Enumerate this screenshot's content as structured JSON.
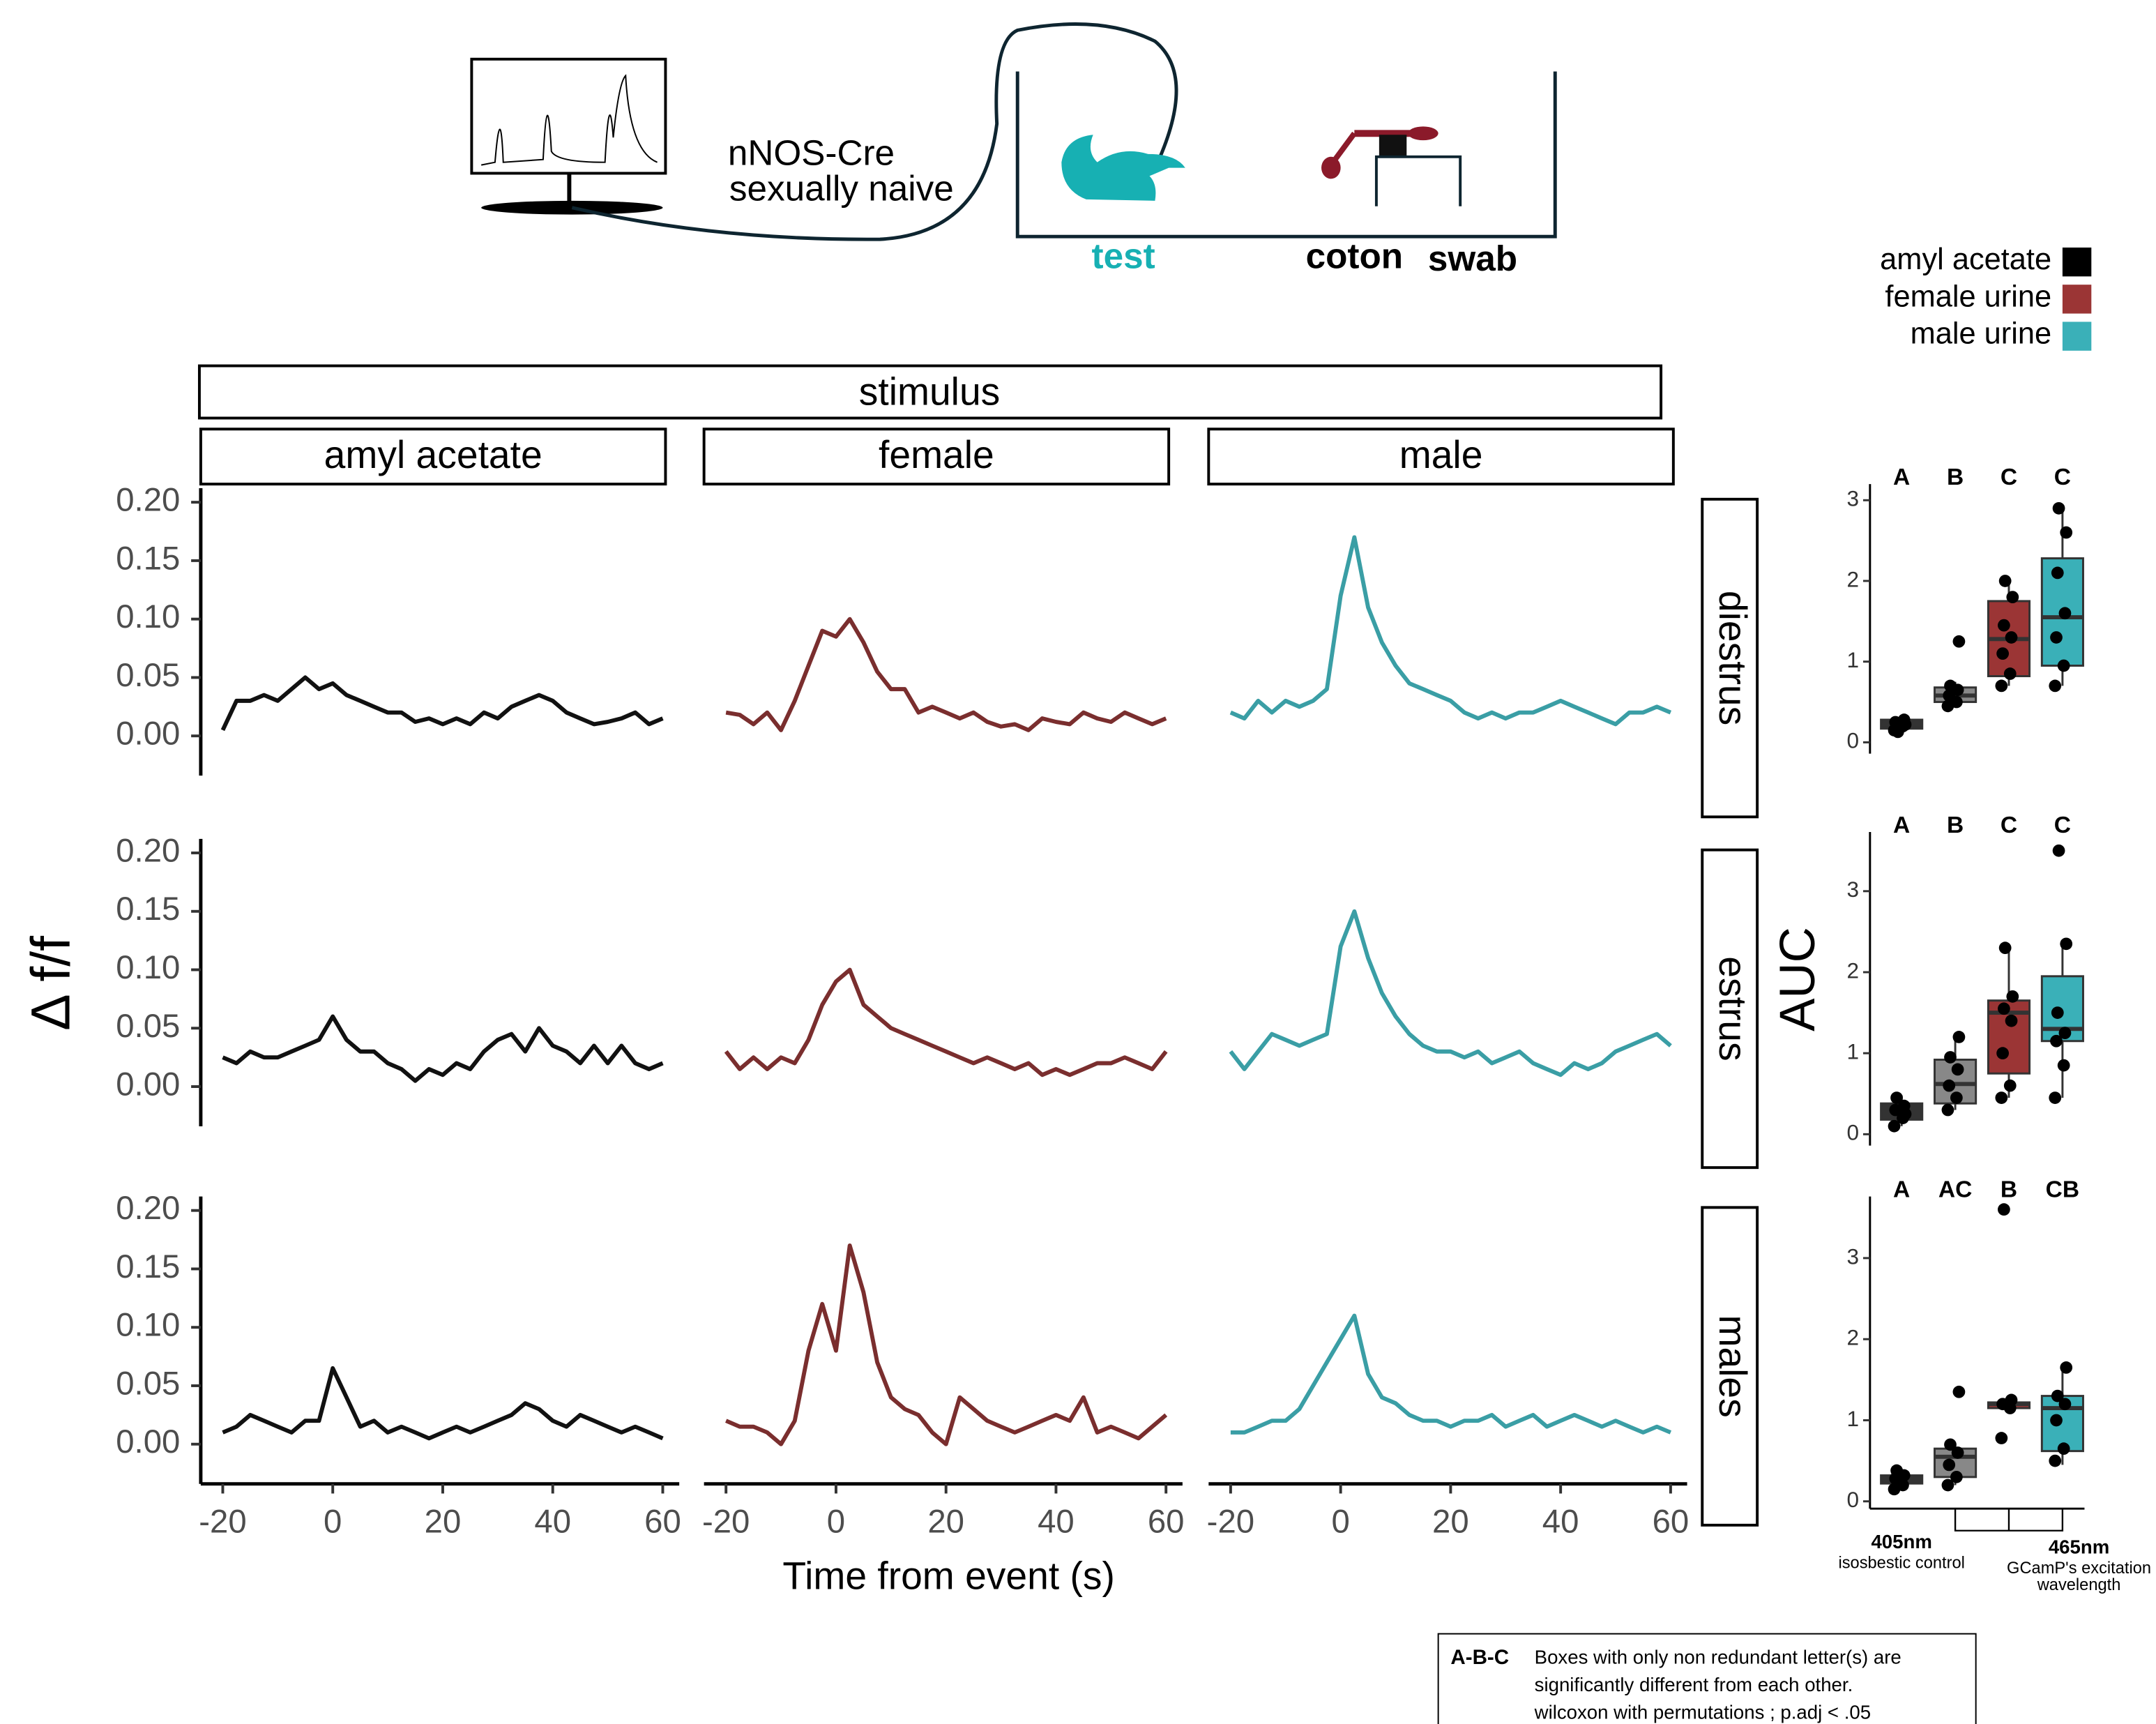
{
  "header": {
    "strain": "nNOS-Cre",
    "condition": "sexually naive",
    "test": "test",
    "stimulus_1": "coton",
    "stimulus_2": "swab"
  },
  "footnote": {
    "key": "A-B-C",
    "lines": [
      "Boxes with only non redundant letter(s) are",
      "significantly different from each other.",
      "wilcoxon with permutations ; p.adj < .05"
    ]
  },
  "chart_data": [
    {
      "type": "line",
      "facet_title": "stimulus",
      "ylabel": "Δ f/f",
      "xlabel": "Time from event (s)",
      "columns": [
        "amyl acetate",
        "female",
        "male"
      ],
      "colors": [
        "#111111",
        "#7a2e2e",
        "#3a9ea5"
      ],
      "xlim": [
        -24,
        63
      ],
      "xticks": [
        -20,
        0,
        20,
        40,
        60
      ],
      "ylim": [
        -0.034,
        0.212
      ],
      "yticks": [
        {
          "value": 0,
          "label": "0.00"
        },
        0.05,
        {
          "value": 0.1,
          "label": "0.10"
        },
        0.15,
        {
          "value": 0.2,
          "label": "0.20"
        }
      ],
      "x": [
        -20,
        -17.5,
        -15,
        -12.5,
        -10,
        -7.5,
        -5,
        -2.5,
        0,
        2.5,
        5,
        7.5,
        10,
        12.5,
        15,
        17.5,
        20,
        22.5,
        25,
        27.5,
        30,
        32.5,
        35,
        37.5,
        40,
        42.5,
        45,
        47.5,
        50,
        52.5,
        55,
        57.5,
        60
      ],
      "rows": [
        {
          "name": "diestrus",
          "values": [
            [
              0.005,
              0.03,
              0.03,
              0.035,
              0.03,
              0.04,
              0.05,
              0.04,
              0.045,
              0.035,
              0.03,
              0.025,
              0.02,
              0.02,
              0.012,
              0.015,
              0.01,
              0.015,
              0.01,
              0.02,
              0.015,
              0.025,
              0.03,
              0.035,
              0.03,
              0.02,
              0.015,
              0.01,
              0.012,
              0.015,
              0.02,
              0.01,
              0.015
            ],
            [
              0.02,
              0.018,
              0.01,
              0.02,
              0.005,
              0.03,
              0.06,
              0.09,
              0.085,
              0.1,
              0.08,
              0.055,
              0.04,
              0.04,
              0.02,
              0.025,
              0.02,
              0.015,
              0.02,
              0.012,
              0.008,
              0.01,
              0.005,
              0.015,
              0.012,
              0.01,
              0.02,
              0.015,
              0.012,
              0.02,
              0.015,
              0.01,
              0.015
            ],
            [
              0.02,
              0.015,
              0.03,
              0.02,
              0.03,
              0.025,
              0.03,
              0.04,
              0.12,
              0.17,
              0.11,
              0.08,
              0.06,
              0.045,
              0.04,
              0.035,
              0.03,
              0.02,
              0.015,
              0.02,
              0.015,
              0.02,
              0.02,
              0.025,
              0.03,
              0.025,
              0.02,
              0.015,
              0.01,
              0.02,
              0.02,
              0.025,
              0.02
            ]
          ]
        },
        {
          "name": "estrus",
          "values": [
            [
              0.025,
              0.02,
              0.03,
              0.025,
              0.025,
              0.03,
              0.035,
              0.04,
              0.06,
              0.04,
              0.03,
              0.03,
              0.02,
              0.015,
              0.005,
              0.015,
              0.01,
              0.02,
              0.015,
              0.03,
              0.04,
              0.045,
              0.03,
              0.05,
              0.035,
              0.03,
              0.02,
              0.035,
              0.02,
              0.035,
              0.02,
              0.015,
              0.02
            ],
            [
              0.03,
              0.015,
              0.025,
              0.015,
              0.025,
              0.02,
              0.04,
              0.07,
              0.09,
              0.1,
              0.07,
              0.06,
              0.05,
              0.045,
              0.04,
              0.035,
              0.03,
              0.025,
              0.02,
              0.025,
              0.02,
              0.015,
              0.02,
              0.01,
              0.015,
              0.01,
              0.015,
              0.02,
              0.02,
              0.025,
              0.02,
              0.015,
              0.03
            ],
            [
              0.03,
              0.015,
              0.03,
              0.045,
              0.04,
              0.035,
              0.04,
              0.045,
              0.12,
              0.15,
              0.11,
              0.08,
              0.06,
              0.045,
              0.035,
              0.03,
              0.03,
              0.025,
              0.03,
              0.02,
              0.025,
              0.03,
              0.02,
              0.015,
              0.01,
              0.02,
              0.015,
              0.02,
              0.03,
              0.035,
              0.04,
              0.045,
              0.035
            ]
          ]
        },
        {
          "name": "males",
          "values": [
            [
              0.01,
              0.015,
              0.025,
              0.02,
              0.015,
              0.01,
              0.02,
              0.02,
              0.065,
              0.04,
              0.015,
              0.02,
              0.01,
              0.015,
              0.01,
              0.005,
              0.01,
              0.015,
              0.01,
              0.015,
              0.02,
              0.025,
              0.035,
              0.03,
              0.02,
              0.015,
              0.025,
              0.02,
              0.015,
              0.01,
              0.015,
              0.01,
              0.005
            ],
            [
              0.02,
              0.015,
              0.015,
              0.01,
              0,
              0.02,
              0.08,
              0.12,
              0.08,
              0.17,
              0.13,
              0.07,
              0.04,
              0.03,
              0.025,
              0.01,
              0,
              0.04,
              0.03,
              0.02,
              0.015,
              0.01,
              0.015,
              0.02,
              0.025,
              0.02,
              0.04,
              0.01,
              0.015,
              0.01,
              0.005,
              0.015,
              0.025
            ],
            [
              0.01,
              0.01,
              0.015,
              0.02,
              0.02,
              0.03,
              0.05,
              0.07,
              0.09,
              0.11,
              0.06,
              0.04,
              0.035,
              0.025,
              0.02,
              0.02,
              0.015,
              0.02,
              0.02,
              0.025,
              0.015,
              0.02,
              0.025,
              0.015,
              0.02,
              0.025,
              0.02,
              0.015,
              0.02,
              0.015,
              0.01,
              0.015,
              0.01
            ]
          ]
        }
      ]
    },
    {
      "type": "box",
      "ylabel": "AUC",
      "legend": [
        {
          "name": "amyl acetate",
          "color": "#000000"
        },
        {
          "name": "female urine",
          "color": "#9b3535"
        },
        {
          "name": "male urine",
          "color": "#3ab0b8"
        }
      ],
      "groups": [
        {
          "label": "405nm",
          "sublabel": [
            "isosbestic control"
          ]
        },
        {
          "label": "465nm",
          "sublabel": [
            "GCamP's excitation",
            "wavelength"
          ]
        }
      ],
      "panels": [
        {
          "ylim": [
            -0.14,
            3.2
          ],
          "yticks": [
            0,
            1,
            2,
            3
          ],
          "boxes": [
            {
              "letter": "A",
              "color": "#333333",
              "min": 0.12,
              "q1": 0.17,
              "median": 0.22,
              "q3": 0.28,
              "max": 0.3,
              "points": [
                0.15,
                0.2,
                0.25,
                0.28,
                0.18,
                0.22,
                0.13
              ]
            },
            {
              "letter": "B",
              "color": "#888888",
              "min": 0.45,
              "q1": 0.5,
              "median": 0.58,
              "q3": 0.68,
              "max": 0.75,
              "points": [
                0.45,
                0.5,
                0.58,
                0.65,
                0.7,
                1.25
              ]
            },
            {
              "letter": "C",
              "color": "#9b3535",
              "min": 0.7,
              "q1": 0.82,
              "median": 1.28,
              "q3": 1.75,
              "max": 2,
              "points": [
                0.7,
                0.85,
                1.1,
                1.3,
                1.45,
                1.8,
                2
              ]
            },
            {
              "letter": "C",
              "color": "#3ab0b8",
              "min": 0.7,
              "q1": 0.95,
              "median": 1.55,
              "q3": 2.28,
              "max": 2.9,
              "points": [
                0.7,
                0.95,
                1.3,
                1.6,
                2.1,
                2.6,
                2.9
              ]
            }
          ]
        },
        {
          "ylim": [
            -0.14,
            3.73
          ],
          "yticks": [
            0,
            1,
            2,
            3
          ],
          "boxes": [
            {
              "letter": "A",
              "color": "#333333",
              "min": 0.1,
              "q1": 0.18,
              "median": 0.3,
              "q3": 0.38,
              "max": 0.48,
              "points": [
                0.1,
                0.2,
                0.3,
                0.35,
                0.45,
                0.25
              ]
            },
            {
              "letter": "B",
              "color": "#888888",
              "min": 0.3,
              "q1": 0.38,
              "median": 0.62,
              "q3": 0.92,
              "max": 1.2,
              "points": [
                0.3,
                0.45,
                0.6,
                0.8,
                0.95,
                1.2
              ]
            },
            {
              "letter": "C",
              "color": "#9b3535",
              "min": 0.45,
              "q1": 0.75,
              "median": 1.5,
              "q3": 1.65,
              "max": 2.3,
              "points": [
                0.45,
                0.6,
                1,
                1.4,
                1.55,
                1.7,
                2.3
              ]
            },
            {
              "letter": "C",
              "color": "#3ab0b8",
              "min": 0.45,
              "q1": 1.15,
              "median": 1.3,
              "q3": 1.95,
              "max": 2.35,
              "points": [
                0.45,
                0.85,
                1.15,
                1.25,
                1.5,
                2.35,
                3.5
              ]
            }
          ]
        },
        {
          "ylim": [
            -0.09,
            3.76
          ],
          "yticks": [
            0,
            1,
            2,
            3
          ],
          "boxes": [
            {
              "letter": "A",
              "color": "#333333",
              "min": 0.15,
              "q1": 0.22,
              "median": 0.28,
              "q3": 0.32,
              "max": 0.4,
              "points": [
                0.15,
                0.2,
                0.28,
                0.32,
                0.38
              ]
            },
            {
              "letter": "AC",
              "color": "#888888",
              "min": 0.2,
              "q1": 0.3,
              "median": 0.55,
              "q3": 0.65,
              "max": 0.7,
              "points": [
                0.2,
                0.3,
                0.45,
                0.6,
                0.7,
                1.35
              ]
            },
            {
              "letter": "B",
              "color": "#9b3535",
              "min": 1.15,
              "q1": 1.15,
              "median": 1.2,
              "q3": 1.22,
              "max": 1.25,
              "points": [
                0.78,
                1.15,
                1.2,
                1.25,
                3.6
              ]
            },
            {
              "letter": "CB",
              "color": "#3ab0b8",
              "min": 0.45,
              "q1": 0.62,
              "median": 1.15,
              "q3": 1.3,
              "max": 1.65,
              "points": [
                0.5,
                0.65,
                1,
                1.2,
                1.3,
                1.65
              ]
            }
          ]
        }
      ]
    }
  ]
}
